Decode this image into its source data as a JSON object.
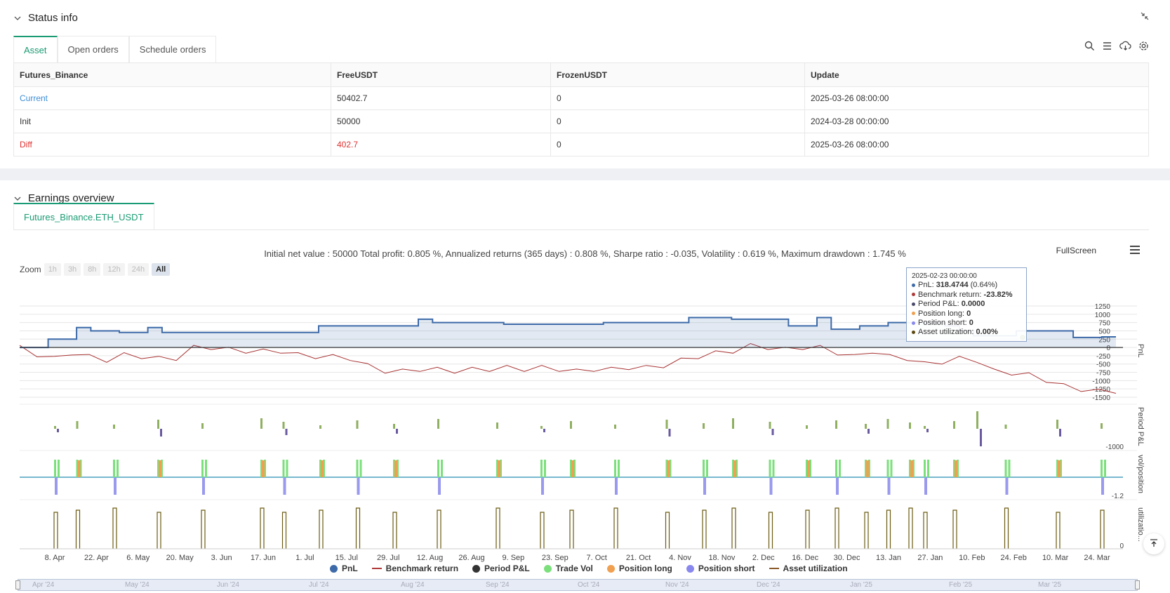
{
  "status": {
    "title": "Status info",
    "tabs": [
      "Asset",
      "Open orders",
      "Schedule orders"
    ],
    "table": {
      "headers": [
        "Futures_Binance",
        "FreeUSDT",
        "FrozenUSDT",
        "Update"
      ],
      "rows": [
        [
          "Current",
          "50402.7",
          "0",
          "2025-03-26 08:00:00"
        ],
        [
          "Init",
          "50000",
          "0",
          "2024-03-28 00:00:00"
        ],
        [
          "Diff",
          "402.7",
          "0",
          "2025-03-26 08:00:00"
        ]
      ]
    }
  },
  "earnings": {
    "title": "Earnings overview",
    "tab": "Futures_Binance.ETH_USDT",
    "summary": "Initial net value : 50000 Total profit: 0.805 %, Annualized returns (365 days) : 0.808 %, Sharpe ratio : -0.035, Volatility : 0.619 %, Maximum drawdown : 1.745 %",
    "fullscreen": "FullScreen",
    "zoom": {
      "label": "Zoom",
      "buttons": [
        "1h",
        "3h",
        "8h",
        "12h",
        "24h",
        "All"
      ]
    },
    "tooltip": {
      "date": "2025-02-23 00:00:00",
      "lines": [
        {
          "label": "PnL: ",
          "value": "318.4744",
          "extra": " (0.64%)",
          "color": "#3d6aa8"
        },
        {
          "label": "Benchmark return: ",
          "value": "-23.82%",
          "extra": "",
          "color": "#b03a3a"
        },
        {
          "label": "Period P&L: ",
          "value": "0.0000",
          "extra": "",
          "color": "#4a4a6a"
        },
        {
          "label": "Position long: ",
          "value": "0",
          "extra": "",
          "color": "#f0a050"
        },
        {
          "label": "Position short: ",
          "value": "0",
          "extra": "",
          "color": "#8888ee"
        },
        {
          "label": "Asset utilization: ",
          "value": "0.00%",
          "extra": "",
          "color": "#5a4a10"
        }
      ]
    },
    "legend": [
      {
        "name": "PnL",
        "kind": "dot",
        "color": "#3d6aa8"
      },
      {
        "name": "Benchmark return",
        "kind": "line",
        "color": "#b03a3a"
      },
      {
        "name": "Period P&L",
        "kind": "dot",
        "color": "#333333"
      },
      {
        "name": "Trade Vol",
        "kind": "dot",
        "color": "#7be07b"
      },
      {
        "name": "Position long",
        "kind": "dot",
        "color": "#f0a050"
      },
      {
        "name": "Position short",
        "kind": "dot",
        "color": "#8888ee"
      },
      {
        "name": "Asset utilization",
        "kind": "line",
        "color": "#8a5a2a"
      }
    ],
    "navigator_labels": [
      "Apr '24",
      "May '24",
      "Jun '24",
      "Jul '24",
      "Aug '24",
      "Sep '24",
      "Oct '24",
      "Nov '24",
      "Dec '24",
      "Jan '25",
      "Feb '25",
      "Mar '25"
    ]
  },
  "chart_data": {
    "type": "line",
    "x_ticks": [
      "8. Apr",
      "22. Apr",
      "6. May",
      "20. May",
      "3. Jun",
      "17. Jun",
      "1. Jul",
      "15. Jul",
      "29. Jul",
      "12. Aug",
      "26. Aug",
      "9. Sep",
      "23. Sep",
      "7. Oct",
      "21. Oct",
      "4. Nov",
      "18. Nov",
      "2. Dec",
      "16. Dec",
      "30. Dec",
      "13. Jan",
      "27. Jan",
      "10. Feb",
      "24. Feb",
      "10. Mar",
      "24. Mar"
    ],
    "pnl_axis": {
      "label": "PnL",
      "ticks": [
        "1250",
        "1000",
        "750",
        "500",
        "250",
        "0",
        "-250",
        "-500",
        "-750",
        "-1000",
        "-1250",
        "-1500"
      ],
      "range": [
        -1500,
        1250
      ]
    },
    "period_axis": {
      "label": "Period P&L",
      "ticks": [
        "-1000"
      ]
    },
    "vol_axis": {
      "label": "vol/position",
      "ticks": [
        "-1.2"
      ]
    },
    "util_axis": {
      "label": "utilizatio...",
      "ticks": [
        "0"
      ]
    },
    "pnl": [
      0,
      0,
      250,
      250,
      600,
      500,
      500,
      450,
      450,
      600,
      450,
      450,
      450,
      450,
      450,
      450,
      450,
      450,
      450,
      450,
      450,
      650,
      650,
      650,
      650,
      650,
      650,
      650,
      850,
      750,
      750,
      750,
      750,
      750,
      700,
      700,
      700,
      700,
      700,
      700,
      700,
      750,
      750,
      750,
      750,
      750,
      750,
      900,
      900,
      900,
      850,
      850,
      850,
      850,
      650,
      650,
      900,
      550,
      550,
      650,
      650,
      750,
      750,
      750,
      750,
      650,
      500,
      350,
      350,
      350,
      500,
      500,
      500,
      500,
      300,
      300,
      320,
      320
    ],
    "benchmark_pct": [
      0,
      -4,
      -6,
      -3,
      -5,
      -7,
      -4,
      -5,
      -6,
      -6,
      0,
      0,
      -1,
      -2,
      -2,
      -2,
      -4,
      -5,
      -5,
      -6,
      -10,
      -13,
      -13,
      -12,
      -12,
      -13,
      -12,
      -12,
      -11,
      -12,
      -11,
      -12,
      -13,
      -12,
      -12,
      -11,
      -11,
      -10,
      -7,
      -5,
      -3,
      -2,
      1,
      0,
      -1,
      0,
      0,
      -3,
      -5,
      -2,
      -5,
      -6,
      -9,
      -8,
      -6,
      -7,
      -13,
      -14,
      -15,
      -18,
      -21,
      -23,
      -24,
      -24
    ],
    "trade_markers_x": [
      2,
      5,
      10,
      16,
      22,
      30,
      33,
      38,
      43,
      48,
      54,
      62,
      68,
      72,
      78,
      85,
      90,
      94,
      99,
      104,
      108,
      112,
      115,
      118,
      120,
      124,
      131,
      138,
      144
    ]
  }
}
